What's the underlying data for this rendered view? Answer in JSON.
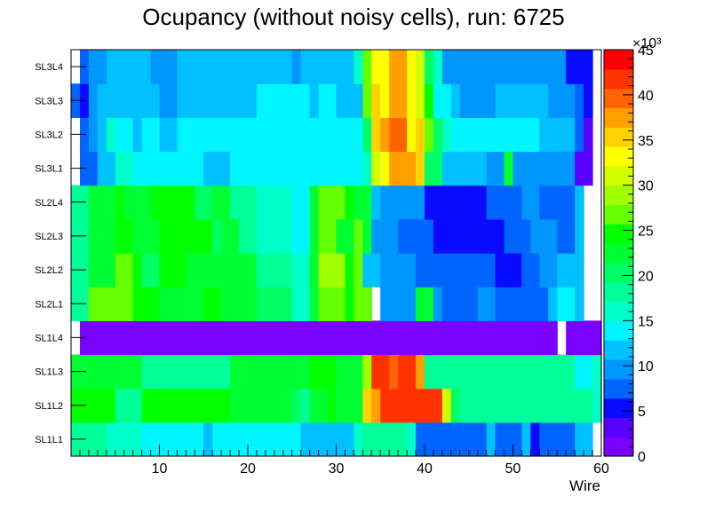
{
  "chart_data": {
    "type": "heatmap",
    "title": "Ocupancy (without noisy cells), run: 6725",
    "xlabel": "Wire",
    "ylabel": "",
    "xlim": [
      0,
      60
    ],
    "x_ticks": [
      "10",
      "20",
      "30",
      "40",
      "50",
      "60"
    ],
    "y_categories": [
      "SL1L1",
      "SL1L2",
      "SL1L3",
      "SL1L4",
      "SL2L1",
      "SL2L2",
      "SL2L3",
      "SL2L4",
      "SL3L1",
      "SL3L2",
      "SL3L3",
      "SL3L4"
    ],
    "colorbar": {
      "min": 0,
      "max": 45,
      "exponent_label": "×10³",
      "tick_labels": [
        "0",
        "5",
        "10",
        "15",
        "20",
        "25",
        "30",
        "35",
        "40",
        "45"
      ],
      "palette": [
        "#7a00ff",
        "#5a00ff",
        "#0a0aff",
        "#0064ff",
        "#0096ff",
        "#00c0ff",
        "#00f5ff",
        "#00ffc8",
        "#00ff96",
        "#00ff64",
        "#00ff32",
        "#00ff00",
        "#64ff00",
        "#a0ff00",
        "#d2ff00",
        "#ffff00",
        "#ffd200",
        "#ffa000",
        "#ff6400",
        "#ff3200",
        "#ff0000"
      ]
    },
    "rows": [
      {
        "layer": "SL1L1",
        "segments": [
          [
            0,
            4,
            19
          ],
          [
            4,
            8,
            15.5
          ],
          [
            8,
            15,
            14
          ],
          [
            15,
            16,
            11
          ],
          [
            16,
            26,
            14
          ],
          [
            26,
            32,
            11
          ],
          [
            32,
            33,
            15
          ],
          [
            33,
            38,
            19
          ],
          [
            38,
            39,
            17
          ],
          [
            39,
            47,
            8
          ],
          [
            47,
            48,
            11
          ],
          [
            48,
            51,
            8
          ],
          [
            51,
            52,
            11
          ],
          [
            52,
            53,
            5
          ],
          [
            53,
            57,
            8
          ],
          [
            57,
            59,
            12
          ]
        ]
      },
      {
        "layer": "SL1L2",
        "segments": [
          [
            0,
            5,
            24
          ],
          [
            5,
            8,
            19
          ],
          [
            8,
            18,
            24
          ],
          [
            18,
            25,
            22
          ],
          [
            25,
            26,
            21
          ],
          [
            26,
            27,
            19
          ],
          [
            27,
            29,
            22
          ],
          [
            29,
            30,
            24
          ],
          [
            30,
            33,
            22
          ],
          [
            33,
            34,
            36
          ],
          [
            34,
            35,
            38
          ],
          [
            35,
            42,
            42
          ],
          [
            42,
            43,
            31
          ],
          [
            43,
            44,
            21
          ],
          [
            44,
            48,
            19
          ],
          [
            48,
            59,
            18
          ],
          [
            59,
            60,
            17
          ]
        ]
      },
      {
        "layer": "SL1L3",
        "segments": [
          [
            0,
            8,
            22
          ],
          [
            8,
            18,
            19
          ],
          [
            18,
            27,
            22
          ],
          [
            27,
            30,
            24
          ],
          [
            30,
            33,
            22
          ],
          [
            33,
            34,
            29
          ],
          [
            34,
            36,
            42
          ],
          [
            36,
            37,
            39
          ],
          [
            37,
            39,
            42
          ],
          [
            39,
            40,
            38
          ],
          [
            40,
            48,
            19
          ],
          [
            48,
            57,
            18
          ],
          [
            57,
            59,
            14
          ],
          [
            59,
            60,
            16
          ]
        ]
      },
      {
        "layer": "SL1L4",
        "segments": [
          [
            1,
            55,
            1.5
          ],
          [
            56,
            60,
            1.5
          ]
        ]
      },
      {
        "layer": "SL2L1",
        "segments": [
          [
            0,
            2,
            19
          ],
          [
            2,
            7,
            27
          ],
          [
            7,
            8,
            25
          ],
          [
            8,
            10,
            24
          ],
          [
            10,
            15,
            23
          ],
          [
            15,
            17,
            24
          ],
          [
            17,
            21,
            23
          ],
          [
            21,
            25,
            20
          ],
          [
            25,
            27,
            17
          ],
          [
            27,
            28,
            23
          ],
          [
            28,
            31,
            27
          ],
          [
            31,
            32,
            25
          ],
          [
            32,
            34,
            26
          ],
          [
            34,
            35,
            0
          ],
          [
            35,
            39,
            10
          ],
          [
            39,
            41,
            22
          ],
          [
            41,
            42,
            10
          ],
          [
            42,
            46,
            8
          ],
          [
            46,
            48,
            9
          ],
          [
            48,
            54,
            8
          ],
          [
            54,
            55,
            11
          ],
          [
            55,
            57,
            13
          ],
          [
            57,
            58,
            11
          ]
        ]
      },
      {
        "layer": "SL2L2",
        "segments": [
          [
            0,
            2,
            19
          ],
          [
            2,
            5,
            22
          ],
          [
            5,
            7,
            26
          ],
          [
            7,
            8,
            24
          ],
          [
            8,
            10,
            21
          ],
          [
            10,
            13,
            24
          ],
          [
            13,
            19,
            22
          ],
          [
            19,
            21,
            23
          ],
          [
            21,
            25,
            19
          ],
          [
            25,
            27,
            17
          ],
          [
            27,
            28,
            23
          ],
          [
            28,
            31,
            28
          ],
          [
            31,
            32,
            25
          ],
          [
            32,
            33,
            26
          ],
          [
            33,
            35,
            12
          ],
          [
            35,
            39,
            10
          ],
          [
            39,
            46,
            8
          ],
          [
            46,
            48,
            7
          ],
          [
            48,
            51,
            5
          ],
          [
            51,
            53,
            8
          ],
          [
            53,
            55,
            10
          ],
          [
            55,
            57,
            12
          ],
          [
            57,
            58,
            11
          ]
        ]
      },
      {
        "layer": "SL2L3",
        "segments": [
          [
            0,
            2,
            19
          ],
          [
            2,
            5,
            22
          ],
          [
            5,
            7,
            24
          ],
          [
            7,
            8,
            23
          ],
          [
            8,
            10,
            22
          ],
          [
            10,
            16,
            24
          ],
          [
            16,
            17,
            21
          ],
          [
            17,
            19,
            22
          ],
          [
            19,
            21,
            19
          ],
          [
            21,
            25,
            17
          ],
          [
            25,
            27,
            14
          ],
          [
            27,
            28,
            22
          ],
          [
            28,
            30,
            26
          ],
          [
            30,
            32,
            23
          ],
          [
            32,
            33,
            26
          ],
          [
            33,
            34,
            22
          ],
          [
            34,
            37,
            10
          ],
          [
            37,
            41,
            8
          ],
          [
            41,
            49,
            5
          ],
          [
            49,
            52,
            8
          ],
          [
            52,
            55,
            10
          ],
          [
            55,
            57,
            8
          ],
          [
            57,
            58,
            11
          ]
        ]
      },
      {
        "layer": "SL2L4",
        "segments": [
          [
            0,
            2,
            19
          ],
          [
            2,
            5,
            22
          ],
          [
            5,
            6,
            24
          ],
          [
            6,
            9,
            23
          ],
          [
            9,
            14,
            24
          ],
          [
            14,
            16,
            21
          ],
          [
            16,
            18,
            22
          ],
          [
            18,
            21,
            19
          ],
          [
            21,
            25,
            17
          ],
          [
            25,
            27,
            14
          ],
          [
            27,
            28,
            22
          ],
          [
            28,
            31,
            26
          ],
          [
            31,
            32,
            24
          ],
          [
            32,
            34,
            22
          ],
          [
            34,
            35,
            12
          ],
          [
            35,
            40,
            10
          ],
          [
            40,
            47,
            5
          ],
          [
            47,
            51,
            8
          ],
          [
            51,
            53,
            10
          ],
          [
            53,
            57,
            8
          ],
          [
            57,
            58,
            11
          ]
        ]
      },
      {
        "layer": "SL3L1",
        "segments": [
          [
            1,
            3,
            8
          ],
          [
            3,
            5,
            12
          ],
          [
            5,
            7,
            15
          ],
          [
            7,
            8,
            14
          ],
          [
            8,
            12,
            13
          ],
          [
            12,
            13,
            14
          ],
          [
            13,
            15,
            13
          ],
          [
            15,
            18,
            12
          ],
          [
            18,
            27,
            14
          ],
          [
            27,
            30,
            13
          ],
          [
            30,
            33,
            14
          ],
          [
            33,
            34,
            16
          ],
          [
            34,
            35,
            31
          ],
          [
            35,
            36,
            34
          ],
          [
            36,
            38,
            38
          ],
          [
            38,
            39,
            37
          ],
          [
            39,
            40,
            36
          ],
          [
            40,
            42,
            21
          ],
          [
            42,
            47,
            12
          ],
          [
            47,
            49,
            10
          ],
          [
            49,
            50,
            22
          ],
          [
            50,
            52,
            10
          ],
          [
            52,
            57,
            9
          ],
          [
            57,
            59,
            3
          ]
        ]
      },
      {
        "layer": "SL3L2",
        "segments": [
          [
            1,
            2,
            8
          ],
          [
            2,
            3,
            10
          ],
          [
            3,
            4,
            12
          ],
          [
            4,
            5,
            16
          ],
          [
            5,
            7,
            14
          ],
          [
            7,
            8,
            12
          ],
          [
            8,
            10,
            13
          ],
          [
            10,
            12,
            12
          ],
          [
            12,
            20,
            13
          ],
          [
            20,
            25,
            14
          ],
          [
            25,
            26,
            13
          ],
          [
            26,
            33,
            14
          ],
          [
            33,
            34,
            21
          ],
          [
            34,
            35,
            35
          ],
          [
            35,
            36,
            37
          ],
          [
            36,
            38,
            39
          ],
          [
            38,
            39,
            34
          ],
          [
            39,
            40,
            36
          ],
          [
            40,
            41,
            27
          ],
          [
            41,
            42,
            21
          ],
          [
            42,
            43,
            15
          ],
          [
            43,
            47,
            13
          ],
          [
            47,
            49,
            14
          ],
          [
            49,
            50,
            14
          ],
          [
            50,
            53,
            13
          ],
          [
            53,
            56,
            12
          ],
          [
            56,
            57,
            11
          ],
          [
            57,
            58,
            8
          ],
          [
            58,
            59,
            4
          ]
        ]
      },
      {
        "layer": "SL3L3",
        "segments": [
          [
            0,
            1,
            8
          ],
          [
            1,
            2,
            6
          ],
          [
            2,
            3,
            10
          ],
          [
            3,
            10,
            11
          ],
          [
            10,
            11,
            10
          ],
          [
            11,
            12,
            9
          ],
          [
            12,
            21,
            11
          ],
          [
            21,
            27,
            14
          ],
          [
            27,
            28,
            11
          ],
          [
            28,
            30,
            14
          ],
          [
            30,
            33,
            11
          ],
          [
            33,
            34,
            26
          ],
          [
            34,
            35,
            36
          ],
          [
            35,
            36,
            33
          ],
          [
            36,
            38,
            38
          ],
          [
            38,
            39,
            33
          ],
          [
            39,
            40,
            31
          ],
          [
            40,
            41,
            25
          ],
          [
            41,
            42,
            14
          ],
          [
            42,
            43,
            13
          ],
          [
            43,
            44,
            11
          ],
          [
            44,
            45,
            10
          ],
          [
            45,
            46,
            9
          ],
          [
            46,
            48,
            10
          ],
          [
            48,
            54,
            11
          ],
          [
            54,
            57,
            10
          ],
          [
            57,
            58,
            8
          ],
          [
            58,
            59,
            5
          ]
        ]
      },
      {
        "layer": "SL3L4",
        "segments": [
          [
            1,
            2,
            8
          ],
          [
            2,
            4,
            10
          ],
          [
            4,
            9,
            11
          ],
          [
            9,
            12,
            10
          ],
          [
            12,
            25,
            11
          ],
          [
            25,
            26,
            10
          ],
          [
            26,
            32,
            11
          ],
          [
            32,
            33,
            16
          ],
          [
            33,
            34,
            26
          ],
          [
            34,
            35,
            33
          ],
          [
            35,
            36,
            34
          ],
          [
            36,
            37,
            38
          ],
          [
            37,
            38,
            37
          ],
          [
            38,
            39,
            33
          ],
          [
            39,
            40,
            31
          ],
          [
            40,
            41,
            21
          ],
          [
            41,
            42,
            16
          ],
          [
            42,
            44,
            10
          ],
          [
            44,
            56,
            9
          ],
          [
            56,
            58,
            5
          ],
          [
            58,
            59,
            6
          ]
        ]
      }
    ]
  }
}
